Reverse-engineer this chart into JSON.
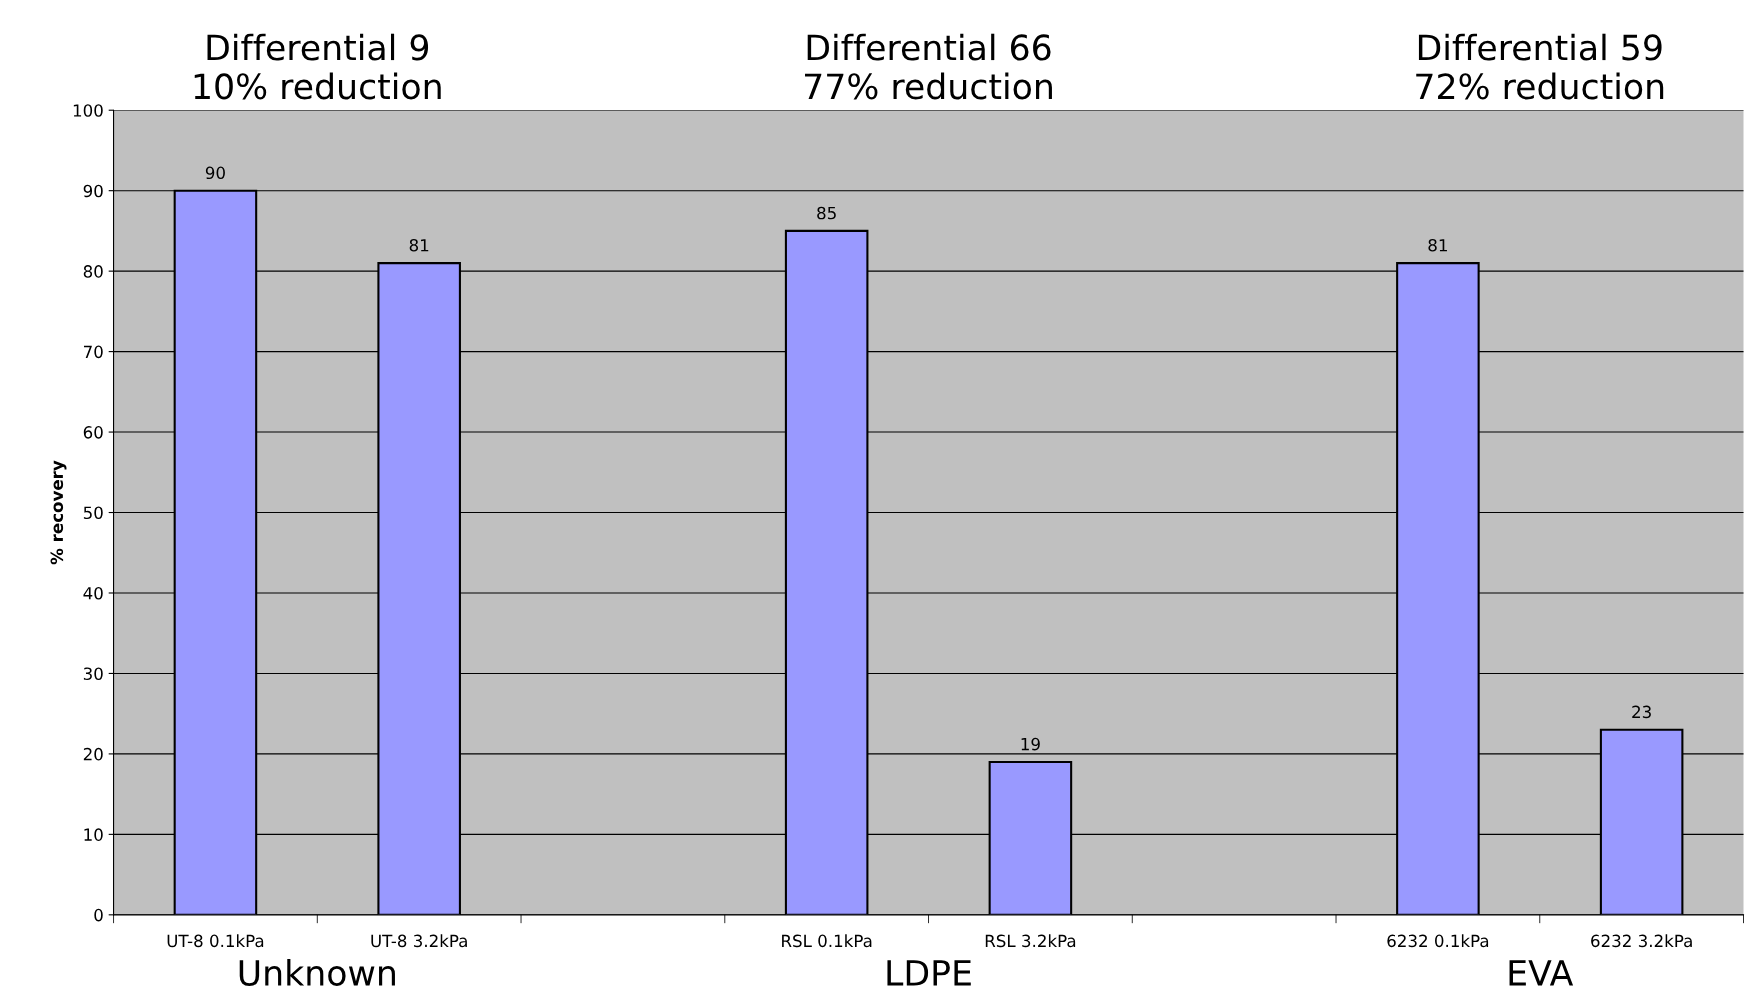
{
  "chart_data": {
    "type": "bar",
    "categories": [
      "UT-8 0.1kPa",
      "UT-8 3.2kPa",
      null,
      "RSL 0.1kPa",
      "RSL 3.2kPa",
      null,
      "6232 0.1kPa",
      "6232 3.2kPa"
    ],
    "values": [
      90,
      81,
      null,
      85,
      19,
      null,
      81,
      23
    ],
    "color": "#9999ff",
    "ylabel": "% recovery",
    "ylim": [
      0,
      100
    ],
    "yticks": [
      0,
      10,
      20,
      30,
      40,
      50,
      60,
      70,
      80,
      90,
      100
    ],
    "grid": "y",
    "data_labels": true,
    "annotations": [
      "Differential 9\n10% reduction",
      "Differential 66\n77% reduction",
      "Differential 59\n72% reduction",
      "Unknown",
      "LDPE",
      "EVA"
    ]
  }
}
